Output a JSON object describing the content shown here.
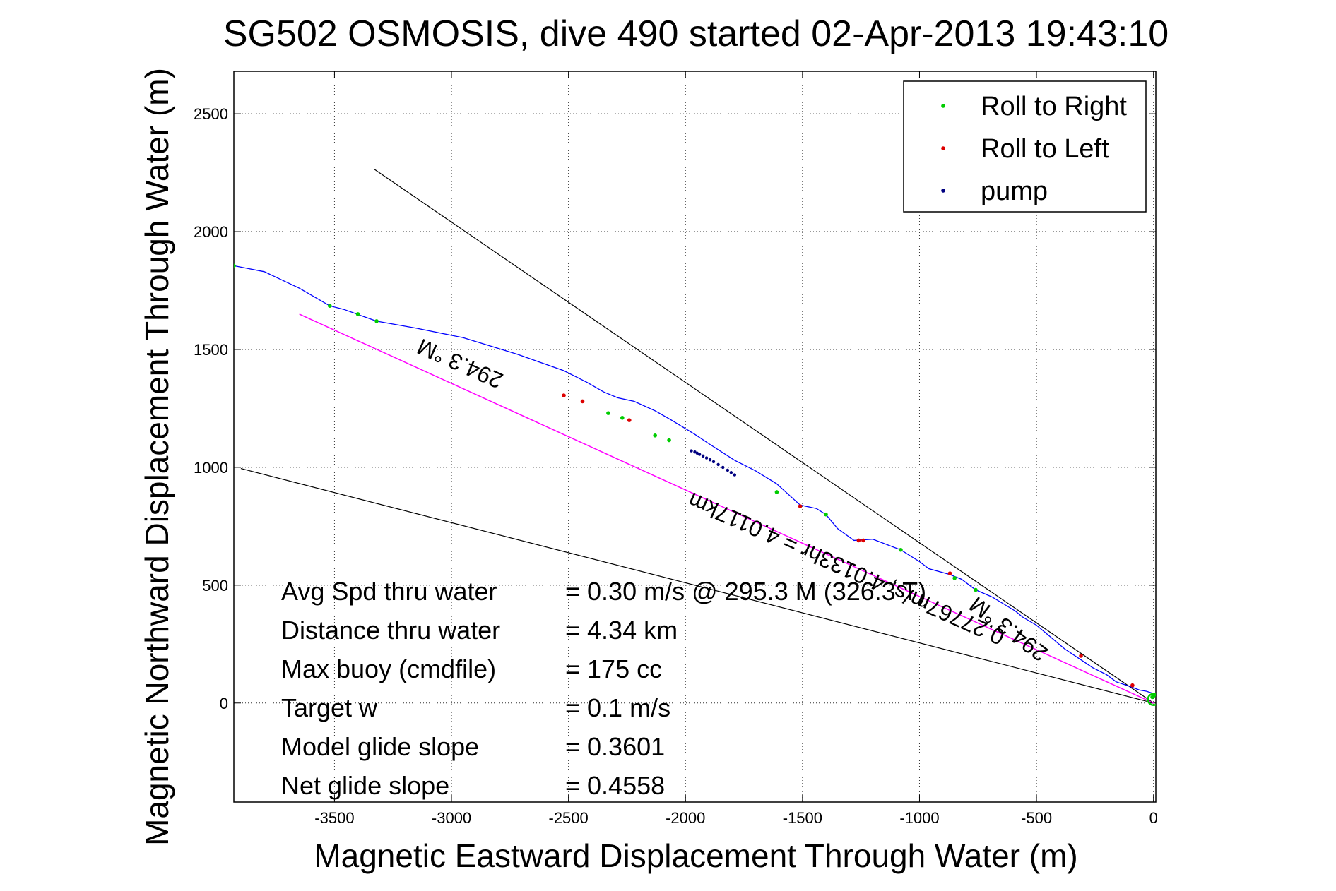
{
  "chart_data": {
    "type": "line",
    "title": "SG502 OSMOSIS, dive 490 started 02-Apr-2013 19:43:10",
    "xlabel": "Magnetic Eastward Displacement Through Water (m)",
    "ylabel": "Magnetic Northward Displacement Through Water (m)",
    "xlim": [
      -3930,
      10
    ],
    "ylim": [
      -420,
      2680
    ],
    "xticks": [
      -3500,
      -3000,
      -2500,
      -2000,
      -1500,
      -1000,
      -500,
      0
    ],
    "yticks": [
      0,
      500,
      1000,
      1500,
      2000,
      2500
    ],
    "grid": true,
    "legend_position": "top-right",
    "legend": [
      {
        "label": "Roll to Right",
        "color": "#00cc00"
      },
      {
        "label": "Roll to Left",
        "color": "#dd0000"
      },
      {
        "label": "pump",
        "color": "#000080"
      }
    ],
    "colors": {
      "track": "#0000ff",
      "net_line": "#ff00ff",
      "bounds": "#000000"
    },
    "track": {
      "x": [
        -3930,
        -3800,
        -3650,
        -3520,
        -3460,
        -3320,
        -3150,
        -2950,
        -2720,
        -2520,
        -2480,
        -2420,
        -2350,
        -2290,
        -2220,
        -2130,
        -2060,
        -1960,
        -1900,
        -1790,
        -1700,
        -1610,
        -1560,
        -1510,
        -1440,
        -1400,
        -1350,
        -1280,
        -1200,
        -1080,
        -1000,
        -960,
        -870,
        -820,
        -760,
        -690,
        -640,
        -590,
        -560,
        -500,
        -440,
        -380,
        -320,
        -260,
        -200,
        -160,
        -100,
        -60,
        -30,
        0
      ],
      "y": [
        1855,
        1830,
        1760,
        1685,
        1670,
        1620,
        1590,
        1550,
        1480,
        1410,
        1390,
        1360,
        1320,
        1295,
        1280,
        1240,
        1200,
        1140,
        1100,
        1030,
        985,
        930,
        885,
        840,
        825,
        800,
        740,
        690,
        695,
        650,
        600,
        570,
        545,
        525,
        480,
        450,
        420,
        390,
        365,
        330,
        280,
        230,
        190,
        150,
        120,
        90,
        70,
        55,
        50,
        40
      ]
    },
    "roll_right": {
      "x": [
        -3930,
        -3520,
        -3400,
        -3320,
        -2330,
        -2270,
        -2130,
        -2070,
        -1610,
        -1400,
        -1080,
        -850,
        -760,
        0,
        -5,
        5
      ],
      "y": [
        1855,
        1685,
        1650,
        1620,
        1230,
        1210,
        1135,
        1115,
        895,
        800,
        650,
        530,
        480,
        30,
        25,
        35
      ]
    },
    "roll_left": {
      "x": [
        -2520,
        -2440,
        -2240,
        -1510,
        -1260,
        -1240,
        -870,
        -310,
        -90
      ],
      "y": [
        1305,
        1280,
        1200,
        835,
        690,
        690,
        550,
        200,
        75
      ]
    },
    "pump": {
      "x": [
        -1975,
        -1960,
        -1950,
        -1940,
        -1925,
        -1910,
        -1895,
        -1880,
        -1860,
        -1840,
        -1820,
        -1805,
        -1790
      ],
      "y": [
        1070,
        1065,
        1060,
        1055,
        1048,
        1040,
        1032,
        1024,
        1012,
        1000,
        988,
        978,
        968
      ]
    },
    "net_line": {
      "x": [
        -3650,
        0
      ],
      "y": [
        1650,
        0
      ]
    },
    "bound_lines": [
      {
        "x": [
          -3330,
          0
        ],
        "y": [
          2265,
          0
        ]
      },
      {
        "x": [
          -3900,
          0
        ],
        "y": [
          995,
          0
        ]
      }
    ],
    "rotated_annotations": [
      {
        "text": "294.3 °M",
        "x": -2950,
        "y": 1470,
        "angle_deg": 24
      },
      {
        "text": "0.27767m/s, 4.0133hr = 4.0117km",
        "x": -1300,
        "y": 600,
        "angle_deg": 24
      },
      {
        "text": "294.3 °M",
        "x": -600,
        "y": 340,
        "angle_deg": 37
      }
    ],
    "stats": [
      {
        "label": "Avg Spd thru water",
        "value": "=  0.30 m/s @ 295.3   M (326.3   T)"
      },
      {
        "label": "Distance thru water",
        "value": "=  4.34 km"
      },
      {
        "label": "Max buoy (cmdfile)",
        "value": "= 175 cc"
      },
      {
        "label": "Target w",
        "value": "= 0.1 m/s"
      },
      {
        "label": "Model glide slope",
        "value": "= 0.3601"
      },
      {
        "label": "Net glide slope",
        "value": "= 0.4558"
      }
    ]
  }
}
